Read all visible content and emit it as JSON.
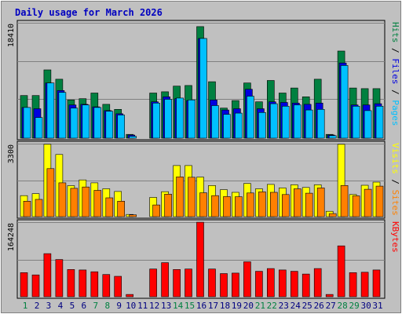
{
  "chart_data": {
    "type": "bar",
    "title": "Daily usage for March 2026",
    "categories": [
      "1",
      "2",
      "3",
      "4",
      "5",
      "6",
      "7",
      "8",
      "9",
      "10",
      "11",
      "12",
      "13",
      "14",
      "15",
      "16",
      "17",
      "18",
      "19",
      "20",
      "21",
      "22",
      "23",
      "24",
      "25",
      "26",
      "27",
      "28",
      "29",
      "30",
      "31"
    ],
    "weekend_days": [
      1,
      7,
      8,
      14,
      15,
      21,
      22,
      28,
      29
    ],
    "panels": [
      {
        "name": "hits-files-pages",
        "ymax_label": "18410",
        "ymax": 18410,
        "right_label_parts": [
          "Pages",
          " / ",
          "Files",
          " / ",
          "Hits"
        ],
        "series": [
          {
            "name": "Hits",
            "color": "#008040",
            "values": [
              6800,
              6800,
              10900,
              9400,
              6100,
              6300,
              7200,
              5400,
              4600,
              600,
              0,
              7200,
              7400,
              8300,
              8400,
              17800,
              9000,
              4800,
              6000,
              8800,
              5800,
              9200,
              7200,
              8000,
              6600,
              9400,
              600,
              13900,
              8000,
              7900,
              7900
            ]
          },
          {
            "name": "Files",
            "color": "#0000e0",
            "values": [
              4900,
              4700,
              8800,
              7600,
              5300,
              5400,
              5000,
              4400,
              3900,
              500,
              0,
              5800,
              6600,
              6300,
              6000,
              15900,
              6100,
              4500,
              4700,
              7800,
              4700,
              5800,
              5700,
              5600,
              5400,
              5600,
              500,
              12000,
              5300,
              5300,
              5500
            ]
          },
          {
            "name": "Pages",
            "color": "#00c0ff",
            "values": [
              4900,
              3300,
              8800,
              7300,
              4800,
              5300,
              4900,
              4300,
              3700,
              300,
              0,
              5600,
              6200,
              6400,
              6100,
              15900,
              5200,
              3800,
              4000,
              6700,
              4100,
              5500,
              5100,
              5300,
              4500,
              4600,
              400,
              11600,
              5100,
              4400,
              5100
            ]
          }
        ]
      },
      {
        "name": "visits-sites",
        "ymax_label": "3300",
        "ymax": 3300,
        "right_label_parts": [
          "Sites",
          " / ",
          "Visits"
        ],
        "series": [
          {
            "name": "Visits",
            "color": "#ffff00",
            "values": [
              950,
              1040,
              3270,
              2810,
              1400,
              1660,
              1530,
              1260,
              1140,
              100,
              0,
              870,
              1130,
              2310,
              2310,
              1790,
              1410,
              1220,
              1100,
              1500,
              1260,
              1460,
              1300,
              1440,
              1320,
              1440,
              240,
              3270,
              1000,
              1420,
              1560
            ]
          },
          {
            "name": "Sites",
            "color": "#ff8000",
            "values": [
              700,
              780,
              2170,
              1530,
              1280,
              1340,
              1190,
              850,
              700,
              80,
              0,
              530,
              1020,
              1800,
              1780,
              1080,
              950,
              910,
              900,
              1070,
              1120,
              1100,
              1000,
              1260,
              1060,
              1300,
              140,
              1410,
              940,
              1240,
              1380
            ]
          }
        ]
      },
      {
        "name": "kbytes",
        "ymax_label": "164248",
        "ymax": 164248,
        "right_label_parts": [
          "KBytes"
        ],
        "series": [
          {
            "name": "KBytes",
            "color": "#ff0000",
            "values": [
              53000,
              48000,
              95000,
              82000,
              60000,
              59000,
              55000,
              49000,
              45000,
              5000,
              0,
              61000,
              75000,
              60000,
              61000,
              164000,
              61000,
              51000,
              52000,
              77000,
              56000,
              62000,
              59000,
              56000,
              50000,
              62000,
              5000,
              112000,
              53000,
              54000,
              59000
            ]
          }
        ]
      }
    ],
    "colors": {
      "background": "#c0c0c0",
      "plot": "#c0c0c0",
      "title": "#0000c0",
      "weekday_label": "#000080",
      "weekend_label": "#008040",
      "gridline": "#808080"
    }
  }
}
